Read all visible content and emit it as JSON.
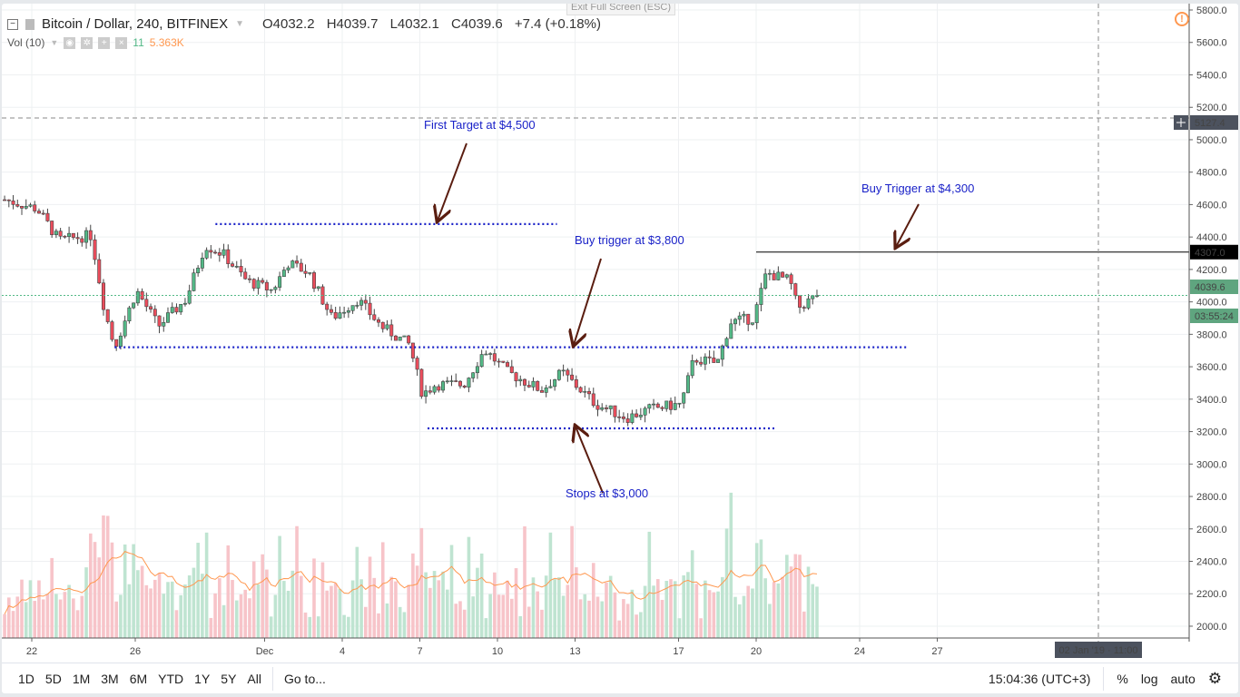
{
  "header": {
    "symbol_title": "Bitcoin / Dollar, 240, BITFINEX",
    "open": "O4032.2",
    "high": "H4039.7",
    "low": "L4032.1",
    "close": "C4039.6",
    "change": "+7.4 (+0.18%)",
    "exit_fullscreen": "Exit Full Screen (ESC)"
  },
  "volume_legend": {
    "label": "Vol (10)",
    "value": "11",
    "ma_value": "5.363K"
  },
  "price_axis": {
    "ticks": [
      "5800.0",
      "5600.0",
      "5400.0",
      "5200.0",
      "5000.0",
      "4800.0",
      "4600.0",
      "4400.0",
      "4200.0",
      "4000.0",
      "3800.0",
      "3600.0",
      "3400.0",
      "3200.0",
      "3000.0",
      "2800.0",
      "2600.0",
      "2400.0",
      "2200.0",
      "2000.0"
    ],
    "crosshair_label": "5127.4",
    "line_label": "4307.0",
    "last_price_label": "4039.6",
    "countdown": "03:55:24"
  },
  "time_axis": {
    "ticks": [
      "22",
      "26",
      "Dec",
      "4",
      "7",
      "10",
      "13",
      "17",
      "20",
      "24",
      "27"
    ],
    "crosshair_label": "02 Jan '19 · 11:00"
  },
  "toolbar": {
    "ranges": [
      "1D",
      "5D",
      "1M",
      "3M",
      "6M",
      "YTD",
      "1Y",
      "5Y",
      "All"
    ],
    "goto": "Go to...",
    "clock": "15:04:36 (UTC+3)",
    "percent": "%",
    "log": "log",
    "auto": "auto"
  },
  "colors": {
    "up": "#53b987",
    "down": "#eb4d5c",
    "annotation": "#1a22c8",
    "ma": "#ff9850"
  },
  "chart_data": {
    "type": "candlestick",
    "title": "Bitcoin / Dollar, 240, BITFINEX",
    "x_units": "days since Nov 22",
    "ylim": [
      2000,
      5800
    ],
    "price_path": [
      [
        -1.05,
        4630
      ],
      [
        0.2,
        4575
      ],
      [
        1.05,
        4380
      ],
      [
        2.3,
        4410
      ],
      [
        2.8,
        3960
      ],
      [
        3.2,
        3720
      ],
      [
        4.05,
        4070
      ],
      [
        4.9,
        3850
      ],
      [
        5.96,
        4015
      ],
      [
        6.7,
        4350
      ],
      [
        7.4,
        4295
      ],
      [
        8.3,
        4130
      ],
      [
        9.3,
        4070
      ],
      [
        9.9,
        4240
      ],
      [
        10.7,
        4180
      ],
      [
        11.6,
        3900
      ],
      [
        12.6,
        4015
      ],
      [
        13.5,
        3850
      ],
      [
        14.6,
        3735
      ],
      [
        15.1,
        3430
      ],
      [
        15.6,
        3490
      ],
      [
        16.7,
        3490
      ],
      [
        17.5,
        3705
      ],
      [
        18.4,
        3565
      ],
      [
        19.7,
        3455
      ],
      [
        20.5,
        3565
      ],
      [
        21.8,
        3370
      ],
      [
        23,
        3285
      ],
      [
        23.9,
        3340
      ],
      [
        25.1,
        3370
      ],
      [
        25.6,
        3650
      ],
      [
        26.5,
        3620
      ],
      [
        27,
        3875
      ],
      [
        27.9,
        3900
      ],
      [
        28.4,
        4180
      ],
      [
        29.3,
        4130
      ],
      [
        29.6,
        3960
      ],
      [
        30.35,
        4039.6
      ]
    ],
    "annotations": [
      {
        "text": "First Target at $4,500",
        "price": 4480
      },
      {
        "text": "Buy trigger at $3,800",
        "price": 3720
      },
      {
        "text": "Stops at $3,000",
        "price": 3220
      },
      {
        "text": "Buy Trigger at $4,300",
        "price": 4307
      }
    ]
  }
}
